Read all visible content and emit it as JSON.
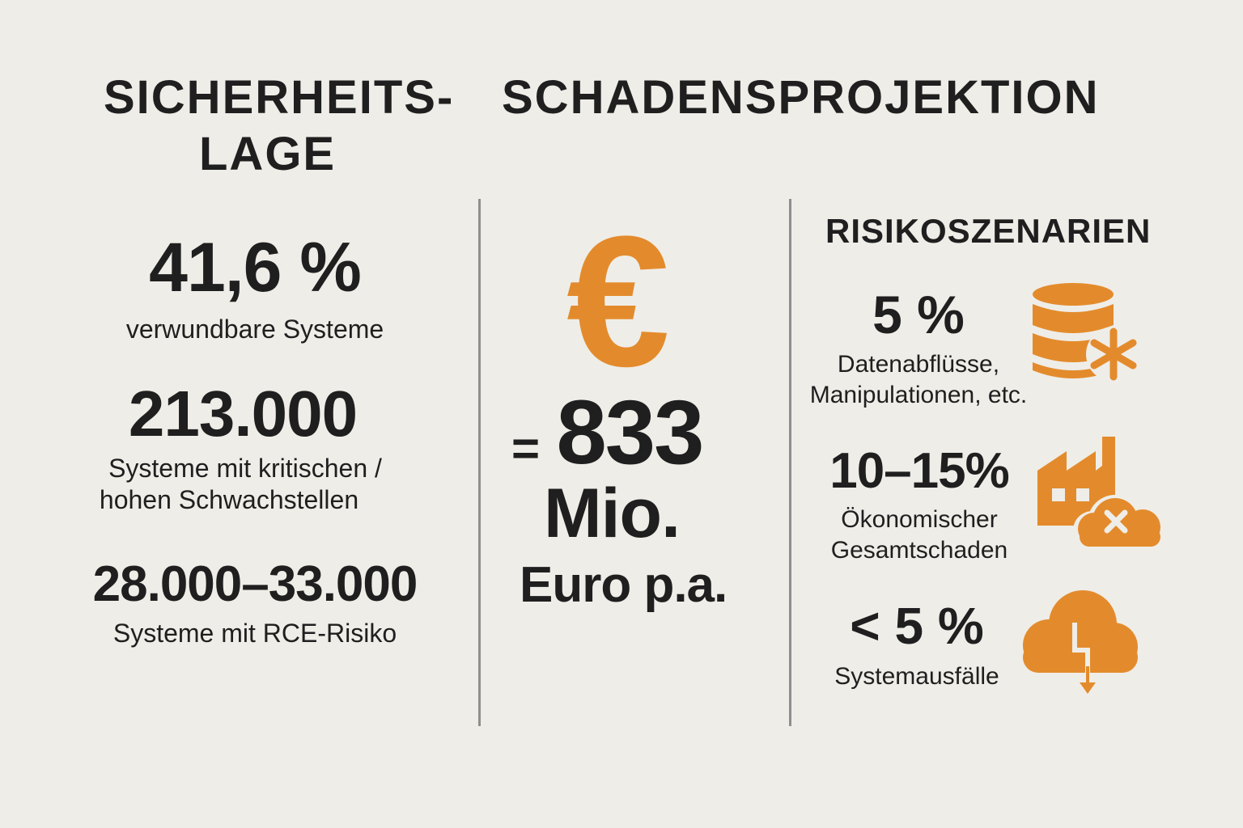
{
  "titles": {
    "left_line1": "SICHERHEITS-",
    "left_line2": "LAGE",
    "center": "SCHADENSPROJEKTION",
    "right": "RISIKOSZENARIEN"
  },
  "left_stats": [
    {
      "value": "41,6 %",
      "label_lines": [
        "verwundbare Systeme"
      ]
    },
    {
      "value": "213.000",
      "label_lines": [
        "Systeme mit kritischen /",
        "hohen Schwachstellen"
      ]
    },
    {
      "value": "28.000–33.000",
      "label_lines": [
        "Systeme mit RCE-Risiko"
      ]
    }
  ],
  "projection": {
    "symbol": "€",
    "value_prefix": "=",
    "value": "833",
    "unit": "Mio.",
    "suffix": "Euro p.a."
  },
  "scenarios": [
    {
      "value": "5 %",
      "label_lines": [
        "Datenabflüsse,",
        "Manipulationen, etc."
      ],
      "icon": "database-asterisk-icon"
    },
    {
      "value": "10–15%",
      "label_lines": [
        "Ökonomischer",
        "Gesamtschaden"
      ],
      "icon": "factory-cloud-x-icon"
    },
    {
      "value": "< 5 %",
      "label_lines": [
        "Systemausfälle"
      ],
      "icon": "cloud-lightning-icon"
    }
  ],
  "colors": {
    "background": "#efede8",
    "text": "#1f1f1f",
    "accent": "#e38b2c",
    "divider": "#8e8e8e"
  }
}
